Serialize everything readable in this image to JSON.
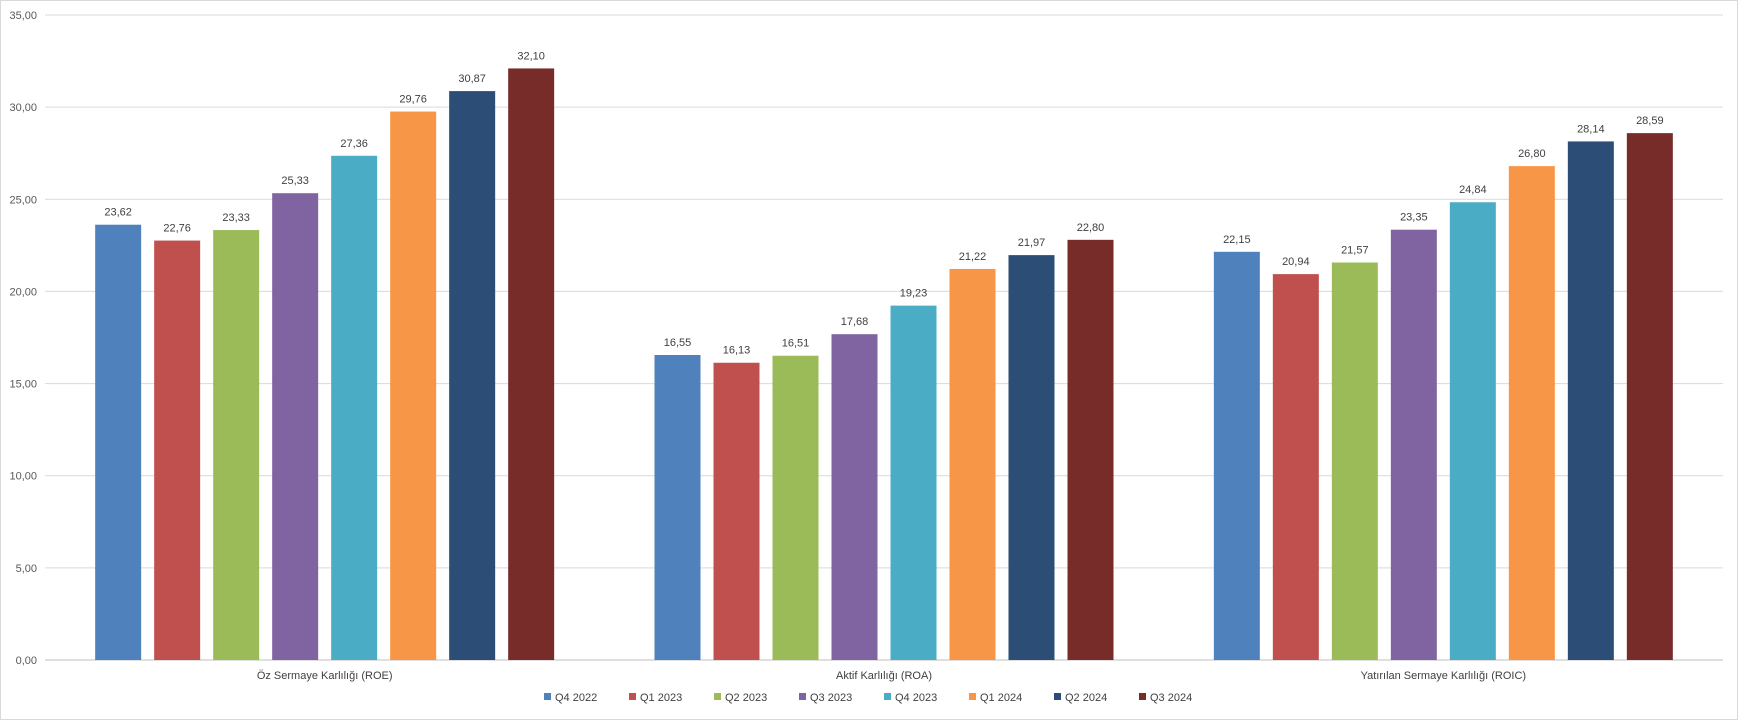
{
  "chart_data": {
    "type": "bar",
    "title": "",
    "xlabel": "",
    "ylabel": "",
    "ylim": [
      0,
      35
    ],
    "yticks": [
      "0,00",
      "5,00",
      "10,00",
      "15,00",
      "20,00",
      "25,00",
      "30,00",
      "35,00"
    ],
    "ytick_values": [
      0,
      5,
      10,
      15,
      20,
      25,
      30,
      35
    ],
    "grid": true,
    "legend_position": "bottom",
    "categories": [
      "Öz Sermaye Karlılığı (ROE)",
      "Aktif Karlılığı (ROA)",
      "Yatırılan Sermaye Karlılığı (ROIC)"
    ],
    "series": [
      {
        "name": "Q4 2022",
        "color": "#4F81BD",
        "values": [
          23.62,
          16.55,
          22.15
        ],
        "labels": [
          "23,62",
          "16,55",
          "22,15"
        ]
      },
      {
        "name": "Q1 2023",
        "color": "#C0504D",
        "values": [
          22.76,
          16.13,
          20.94
        ],
        "labels": [
          "22,76",
          "16,13",
          "20,94"
        ]
      },
      {
        "name": "Q2 2023",
        "color": "#9BBB59",
        "values": [
          23.33,
          16.51,
          21.57
        ],
        "labels": [
          "23,33",
          "16,51",
          "21,57"
        ]
      },
      {
        "name": "Q3 2023",
        "color": "#8064A2",
        "values": [
          25.33,
          17.68,
          23.35
        ],
        "labels": [
          "25,33",
          "17,68",
          "23,35"
        ]
      },
      {
        "name": "Q4 2023",
        "color": "#4BACC6",
        "values": [
          27.36,
          19.23,
          24.84
        ],
        "labels": [
          "27,36",
          "19,23",
          "24,84"
        ]
      },
      {
        "name": "Q1 2024",
        "color": "#F79646",
        "values": [
          29.76,
          21.22,
          26.8
        ],
        "labels": [
          "29,76",
          "21,22",
          "26,80"
        ]
      },
      {
        "name": "Q2 2024",
        "color": "#2C4D75",
        "values": [
          30.87,
          21.97,
          28.14
        ],
        "labels": [
          "30,87",
          "21,97",
          "28,14"
        ]
      },
      {
        "name": "Q3 2024",
        "color": "#772C2A",
        "values": [
          32.1,
          22.8,
          28.59
        ],
        "labels": [
          "32,10",
          "22,80",
          "28,59"
        ]
      }
    ]
  }
}
